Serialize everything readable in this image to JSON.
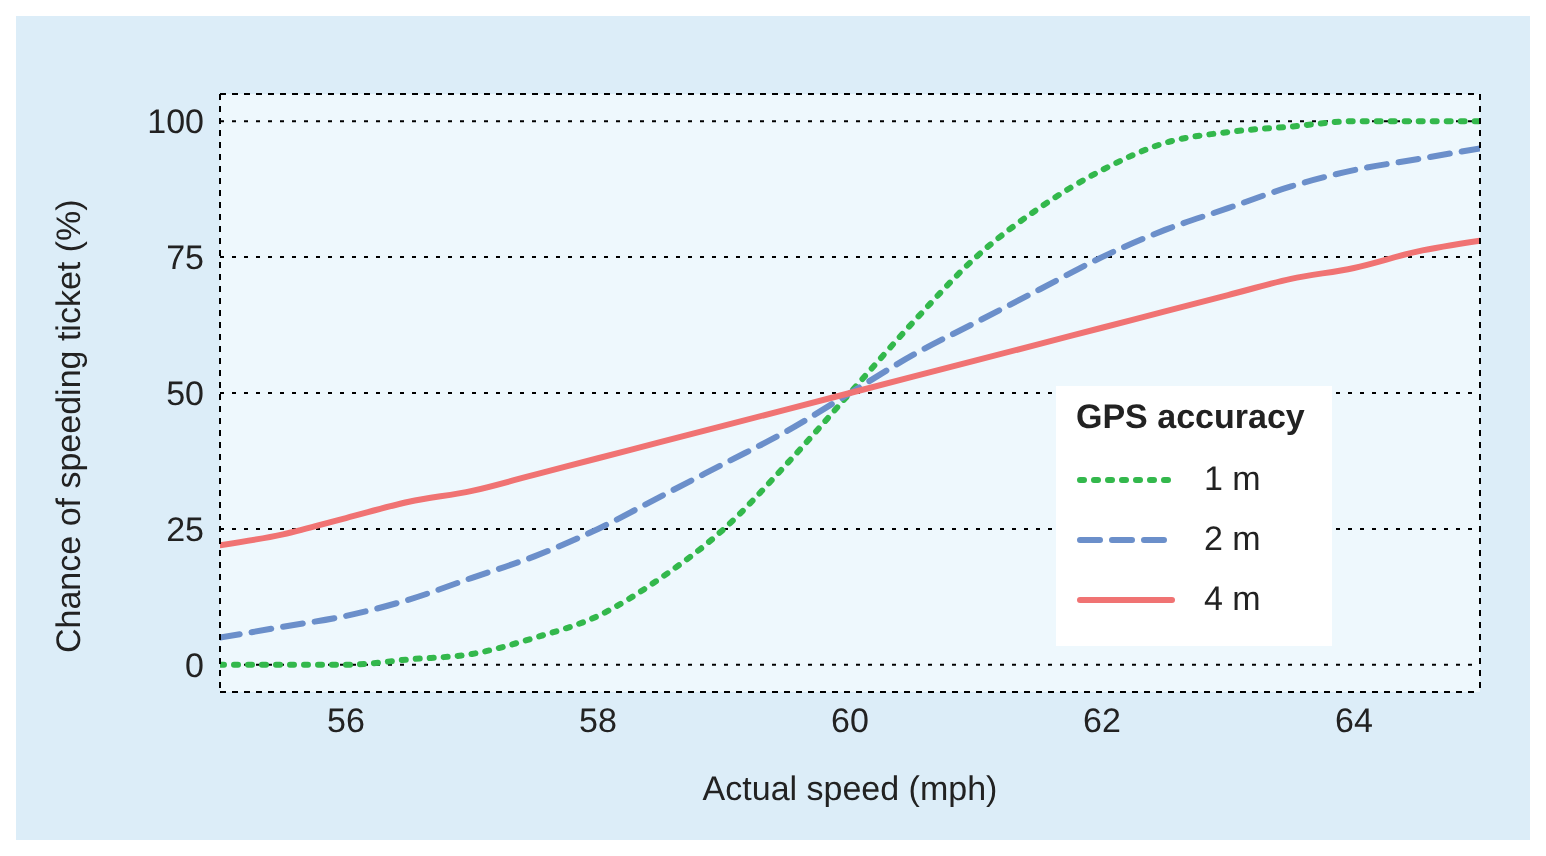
{
  "chart_data": {
    "type": "line",
    "xlabel": "Actual speed (mph)",
    "ylabel": "Chance of speeding ticket (%)",
    "legend_title": "GPS accuracy",
    "x": [
      55,
      55.5,
      56,
      56.5,
      57,
      57.5,
      58,
      58.5,
      59,
      59.5,
      60,
      60.5,
      61,
      61.5,
      62,
      62.5,
      63,
      63.5,
      64,
      64.5,
      65
    ],
    "series": [
      {
        "name": "1 m",
        "color": "#33b84c",
        "line_style": "dotted",
        "values": [
          0,
          0,
          0,
          1,
          2,
          5,
          9,
          16,
          25,
          37,
          50,
          63,
          75,
          84,
          91,
          96,
          98,
          99,
          100,
          100,
          100
        ]
      },
      {
        "name": "2 m",
        "color": "#6b8fca",
        "line_style": "dashed",
        "values": [
          5,
          7,
          9,
          12,
          16,
          20,
          25,
          31,
          37,
          43,
          50,
          57,
          63,
          69,
          75,
          80,
          84,
          88,
          91,
          93,
          95
        ]
      },
      {
        "name": "4 m",
        "color": "#f07373",
        "line_style": "solid",
        "values": [
          22,
          24,
          27,
          30,
          32,
          35,
          38,
          41,
          44,
          47,
          50,
          53,
          56,
          59,
          62,
          65,
          68,
          71,
          73,
          76,
          78
        ]
      }
    ],
    "xlim": [
      55,
      65
    ],
    "xticks": [
      56,
      58,
      60,
      62,
      64
    ],
    "ylim": [
      -5,
      105
    ],
    "yticks": [
      0,
      25,
      50,
      75,
      100
    ],
    "grid": "y",
    "legend": "right",
    "marker": "none"
  }
}
